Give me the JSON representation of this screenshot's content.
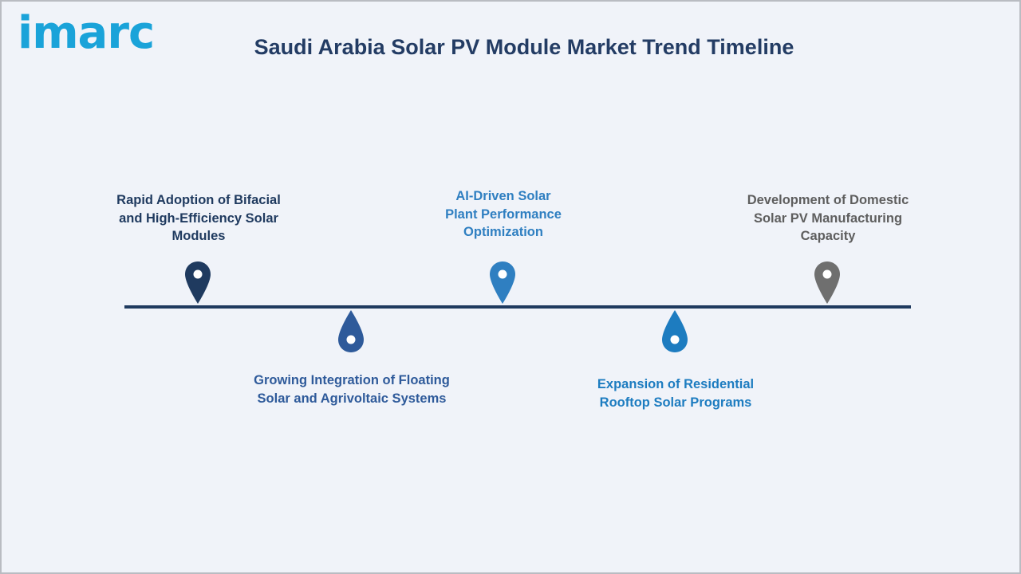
{
  "brand": {
    "logo_text": "imarc"
  },
  "title": "Saudi Arabia Solar PV Module Market Trend Timeline",
  "timeline": {
    "items": [
      {
        "label": "Rapid Adoption of Bifacial and High-Efficiency Solar Modules",
        "color": "#1f3a5f",
        "position": "above"
      },
      {
        "label": "Growing Integration of Floating Solar and Agrivoltaic Systems",
        "color": "#2e5a9a",
        "position": "below"
      },
      {
        "label": "AI-Driven Solar Plant Performance Optimization",
        "color": "#2f7fc1",
        "position": "above"
      },
      {
        "label": "Expansion of Residential Rooftop Solar Programs",
        "color": "#1d7cc0",
        "position": "below"
      },
      {
        "label": "Development of Domestic Solar PV Manufacturing Capacity",
        "color": "#6f6f6f",
        "position": "above"
      }
    ]
  }
}
